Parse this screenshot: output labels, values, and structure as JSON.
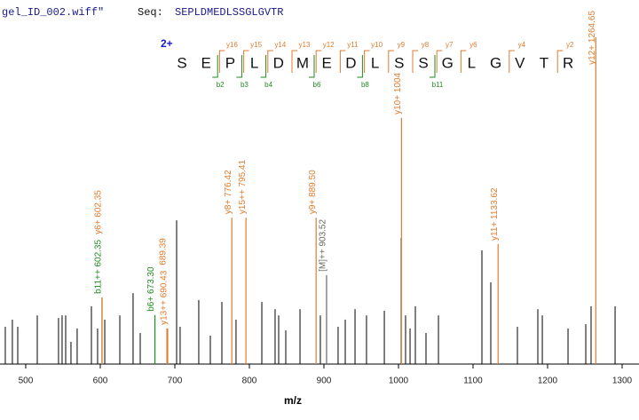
{
  "header": {
    "file": "gel_ID_002.wiff\"",
    "seq_label": "Seq:",
    "sequence": "SEPLDMEDLSSGLGVTR"
  },
  "chart_data": {
    "type": "spectrum",
    "x_label": "m/z",
    "xlim": [
      465.5,
      1322.6
    ],
    "xticks": [
      500,
      600,
      700,
      800,
      900,
      1000,
      1100,
      1200,
      1300
    ],
    "ylim": [
      0,
      100
    ],
    "charge": "2+",
    "residues": [
      "S",
      "E",
      "P",
      "L",
      "D",
      "M",
      "E",
      "D",
      "L",
      "S",
      "S",
      "G",
      "L",
      "G",
      "V",
      "T",
      "R"
    ],
    "y_ions": [
      "y16",
      "y15",
      "y14",
      "y13",
      "y12",
      "y11",
      "y10",
      "y9",
      "y8",
      "y7",
      "y6",
      "y4",
      "y2"
    ],
    "b_ions": [
      "b2",
      "b3",
      "b4",
      "b6",
      "b8",
      "b11"
    ],
    "y_color": "#e07b2c",
    "b_color": "#1f8a1f",
    "peaks": {
      "color": "#000000",
      "x": [
        472.6,
        482.1,
        489.3,
        515.5,
        544.0,
        548.8,
        553.6,
        560.7,
        569.0,
        588.1,
        596.4,
        606.0,
        626.2,
        644.0,
        653.6,
        702.4,
        707.1,
        732.1,
        747.6,
        763.1,
        782.1,
        816.7,
        834.5,
        839.3,
        848.8,
        867.9,
        895.2,
        919.0,
        928.6,
        941.7,
        957.1,
        981.0,
        1003.6,
        1009.5,
        1015.5,
        1022.6,
        1036.9,
        1053.6,
        1111.9,
        1123.8,
        1159.5,
        1186.9,
        1192.9,
        1227.4,
        1251.2,
        1258.3,
        1290.5
      ],
      "values": [
        11.4,
        13.6,
        11.4,
        14.9,
        14.1,
        14.9,
        14.9,
        6.8,
        10.9,
        17.7,
        10.9,
        13.6,
        14.9,
        21.7,
        9.5,
        44.0,
        11.4,
        19.6,
        8.7,
        19.0,
        13.6,
        19.0,
        16.8,
        14.9,
        10.3,
        16.8,
        14.9,
        11.4,
        13.6,
        16.8,
        14.9,
        16.3,
        38.6,
        14.9,
        10.9,
        17.7,
        9.5,
        14.9,
        34.8,
        25.0,
        11.4,
        16.8,
        14.9,
        10.9,
        12.2,
        17.7,
        17.7
      ]
    },
    "annotated_peaks": [
      {
        "x": 602.35,
        "value": 20.4,
        "label": "b11++ 602.35",
        "color": "#1f8a1f"
      },
      {
        "x": 602.35,
        "value": 20.4,
        "label": "y6+ 602.35",
        "color": "#e07b2c"
      },
      {
        "x": 673.3,
        "value": 15.0,
        "label": "b6+ 673.30",
        "color": "#1f8a1f"
      },
      {
        "x": 690.43,
        "value": 10.9,
        "label": "y13++ 690.43",
        "color": "#e07b2c"
      },
      {
        "x": 689.39,
        "value": 10.9,
        "label": "689.39",
        "color": "#e07b2c"
      },
      {
        "x": 776.42,
        "value": 44.8,
        "label": "y8+ 776.42",
        "color": "#e07b2c"
      },
      {
        "x": 795.41,
        "value": 44.8,
        "label": "y15++ 795.41",
        "color": "#e07b2c"
      },
      {
        "x": 889.5,
        "value": 44.8,
        "label": "y9+ 889.50",
        "color": "#e07b2c"
      },
      {
        "x": 903.52,
        "value": 27.2,
        "label": "[M]++ 903.52",
        "color": "#666666"
      },
      {
        "x": 1004,
        "value": 75.3,
        "label": "y10+ 1004",
        "color": "#e07b2c"
      },
      {
        "x": 1133.62,
        "value": 36.7,
        "label": "y11+ 1133.62",
        "color": "#e07b2c"
      },
      {
        "x": 1264.65,
        "value": 100,
        "label": "y12+ 1264.65",
        "color": "#e07b2c"
      }
    ]
  }
}
